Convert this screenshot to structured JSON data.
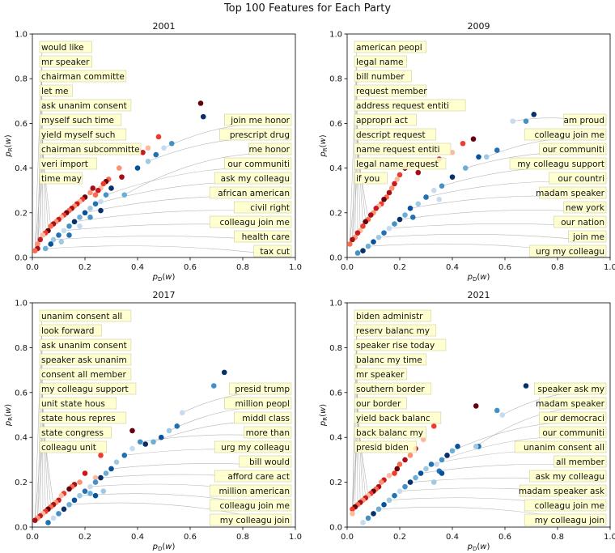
{
  "suptitle": "Top 100 Features for Each Party",
  "chart_data": [
    {
      "type": "scatter",
      "title": "2001",
      "xlabel": "p_D(w)",
      "ylabel": "p_R(w)",
      "xlim": [
        0,
        1.0
      ],
      "ylim": [
        0,
        1.0
      ],
      "xticks": [
        "0.0",
        "0.2",
        "0.4",
        "0.6",
        "0.8",
        "1.0"
      ],
      "yticks": [
        "0.0",
        "0.2",
        "0.4",
        "0.6",
        "0.8",
        "1.0"
      ],
      "republican_labels": [
        "would like",
        "mr speaker",
        "chairman committe",
        "let me",
        "ask unanim consent",
        "myself such time",
        "yield myself such",
        "chairman subcommitte",
        "veri import",
        "time may"
      ],
      "democrat_labels": [
        "join me honor",
        "prescript drug",
        "me honor",
        "our communiti",
        "ask my colleagu",
        "african american",
        "civil right",
        "colleagu join me",
        "health care",
        "tax cut"
      ],
      "republican_points": [
        [
          0.64,
          0.69
        ],
        [
          0.48,
          0.54
        ],
        [
          0.44,
          0.49
        ],
        [
          0.42,
          0.47
        ],
        [
          0.33,
          0.4
        ],
        [
          0.34,
          0.36
        ],
        [
          0.29,
          0.35
        ],
        [
          0.28,
          0.34
        ],
        [
          0.27,
          0.33
        ],
        [
          0.26,
          0.31
        ],
        [
          0.25,
          0.3
        ],
        [
          0.22,
          0.29
        ],
        [
          0.23,
          0.31
        ],
        [
          0.24,
          0.28
        ],
        [
          0.2,
          0.27
        ],
        [
          0.19,
          0.26
        ],
        [
          0.18,
          0.25
        ],
        [
          0.17,
          0.24
        ],
        [
          0.16,
          0.23
        ],
        [
          0.15,
          0.22
        ],
        [
          0.14,
          0.21
        ],
        [
          0.13,
          0.2
        ],
        [
          0.12,
          0.19
        ],
        [
          0.11,
          0.18
        ],
        [
          0.1,
          0.17
        ],
        [
          0.09,
          0.16
        ],
        [
          0.08,
          0.15
        ],
        [
          0.07,
          0.14
        ],
        [
          0.06,
          0.12
        ],
        [
          0.05,
          0.11
        ],
        [
          0.04,
          0.1
        ],
        [
          0.03,
          0.08
        ],
        [
          0.02,
          0.06
        ],
        [
          0.02,
          0.04
        ],
        [
          0.01,
          0.03
        ]
      ],
      "democrat_points": [
        [
          0.65,
          0.63
        ],
        [
          0.53,
          0.51
        ],
        [
          0.5,
          0.49
        ],
        [
          0.47,
          0.46
        ],
        [
          0.44,
          0.43
        ],
        [
          0.4,
          0.4
        ],
        [
          0.35,
          0.28
        ],
        [
          0.3,
          0.31
        ],
        [
          0.28,
          0.28
        ],
        [
          0.26,
          0.25
        ],
        [
          0.24,
          0.24
        ],
        [
          0.22,
          0.22
        ],
        [
          0.2,
          0.2
        ],
        [
          0.18,
          0.18
        ],
        [
          0.16,
          0.16
        ],
        [
          0.14,
          0.14
        ],
        [
          0.12,
          0.12
        ],
        [
          0.1,
          0.1
        ],
        [
          0.08,
          0.08
        ],
        [
          0.07,
          0.06
        ],
        [
          0.05,
          0.04
        ],
        [
          0.26,
          0.21
        ],
        [
          0.22,
          0.18
        ],
        [
          0.18,
          0.14
        ],
        [
          0.14,
          0.1
        ],
        [
          0.11,
          0.07
        ]
      ]
    },
    {
      "type": "scatter",
      "title": "2009",
      "xlabel": "p_D(w)",
      "ylabel": "p_R(w)",
      "xlim": [
        0,
        1.0
      ],
      "ylim": [
        0,
        1.0
      ],
      "xticks": [
        "0.0",
        "0.2",
        "0.4",
        "0.6",
        "0.8",
        "1.0"
      ],
      "yticks": [
        "0.0",
        "0.2",
        "0.4",
        "0.6",
        "0.8",
        "1.0"
      ],
      "republican_labels": [
        "american peopl",
        "legal name",
        "bill number",
        "request member",
        "address request entiti",
        "appropri act",
        "descript request",
        "name request entiti",
        "legal name request",
        "if you"
      ],
      "democrat_labels": [
        "am proud",
        "colleagu join me",
        "our communiti",
        "my colleagu support",
        "our countri",
        "madam speaker",
        "new york",
        "our nation",
        "join me",
        "urg my colleagu"
      ],
      "republican_points": [
        [
          0.48,
          0.53
        ],
        [
          0.44,
          0.51
        ],
        [
          0.4,
          0.47
        ],
        [
          0.35,
          0.44
        ],
        [
          0.3,
          0.42
        ],
        [
          0.27,
          0.38
        ],
        [
          0.24,
          0.41
        ],
        [
          0.22,
          0.4
        ],
        [
          0.2,
          0.37
        ],
        [
          0.19,
          0.35
        ],
        [
          0.18,
          0.33
        ],
        [
          0.17,
          0.31
        ],
        [
          0.16,
          0.29
        ],
        [
          0.15,
          0.27
        ],
        [
          0.14,
          0.26
        ],
        [
          0.13,
          0.24
        ],
        [
          0.12,
          0.23
        ],
        [
          0.11,
          0.22
        ],
        [
          0.1,
          0.2
        ],
        [
          0.09,
          0.19
        ],
        [
          0.08,
          0.17
        ],
        [
          0.07,
          0.16
        ],
        [
          0.06,
          0.14
        ],
        [
          0.05,
          0.12
        ],
        [
          0.04,
          0.11
        ],
        [
          0.03,
          0.09
        ],
        [
          0.02,
          0.08
        ],
        [
          0.01,
          0.06
        ]
      ],
      "democrat_points": [
        [
          0.71,
          0.64
        ],
        [
          0.68,
          0.61
        ],
        [
          0.63,
          0.61
        ],
        [
          0.57,
          0.48
        ],
        [
          0.53,
          0.45
        ],
        [
          0.5,
          0.45
        ],
        [
          0.45,
          0.4
        ],
        [
          0.4,
          0.36
        ],
        [
          0.36,
          0.32
        ],
        [
          0.33,
          0.3
        ],
        [
          0.3,
          0.27
        ],
        [
          0.27,
          0.24
        ],
        [
          0.24,
          0.22
        ],
        [
          0.22,
          0.19
        ],
        [
          0.2,
          0.17
        ],
        [
          0.18,
          0.15
        ],
        [
          0.16,
          0.13
        ],
        [
          0.14,
          0.11
        ],
        [
          0.12,
          0.09
        ],
        [
          0.1,
          0.07
        ],
        [
          0.08,
          0.05
        ],
        [
          0.06,
          0.03
        ],
        [
          0.04,
          0.02
        ],
        [
          0.35,
          0.26
        ],
        [
          0.25,
          0.18
        ]
      ]
    },
    {
      "type": "scatter",
      "title": "2017",
      "xlabel": "p_D(w)",
      "ylabel": "p_R(w)",
      "xlim": [
        0,
        1.0
      ],
      "ylim": [
        0,
        1.0
      ],
      "xticks": [
        "0.0",
        "0.2",
        "0.4",
        "0.6",
        "0.8",
        "1.0"
      ],
      "yticks": [
        "0.0",
        "0.2",
        "0.4",
        "0.6",
        "0.8",
        "1.0"
      ],
      "republican_labels": [
        "unanim consent all",
        "look forward",
        "ask unanim consent",
        "speaker ask unanim",
        "consent all member",
        "my colleagu support",
        "unit state hous",
        "state hous repres",
        "state congress",
        "colleagu unit"
      ],
      "democrat_labels": [
        "presid trump",
        "million peopl",
        "middl class",
        "more than",
        "urg my colleagu",
        "bill would",
        "afford care act",
        "million american",
        "colleagu join me",
        "my colleagu join"
      ],
      "republican_points": [
        [
          0.38,
          0.43
        ],
        [
          0.26,
          0.32
        ],
        [
          0.24,
          0.22
        ],
        [
          0.2,
          0.24
        ],
        [
          0.18,
          0.2
        ],
        [
          0.16,
          0.19
        ],
        [
          0.15,
          0.18
        ],
        [
          0.14,
          0.17
        ],
        [
          0.12,
          0.15
        ],
        [
          0.11,
          0.14
        ],
        [
          0.1,
          0.12
        ],
        [
          0.09,
          0.11
        ],
        [
          0.08,
          0.1
        ],
        [
          0.07,
          0.09
        ],
        [
          0.06,
          0.08
        ],
        [
          0.05,
          0.07
        ],
        [
          0.04,
          0.06
        ],
        [
          0.03,
          0.05
        ],
        [
          0.02,
          0.04
        ],
        [
          0.01,
          0.03
        ]
      ],
      "democrat_points": [
        [
          0.73,
          0.69
        ],
        [
          0.69,
          0.63
        ],
        [
          0.57,
          0.51
        ],
        [
          0.55,
          0.45
        ],
        [
          0.52,
          0.43
        ],
        [
          0.49,
          0.4
        ],
        [
          0.46,
          0.38
        ],
        [
          0.43,
          0.37
        ],
        [
          0.41,
          0.38
        ],
        [
          0.38,
          0.35
        ],
        [
          0.35,
          0.32
        ],
        [
          0.32,
          0.29
        ],
        [
          0.3,
          0.26
        ],
        [
          0.28,
          0.24
        ],
        [
          0.26,
          0.22
        ],
        [
          0.24,
          0.2
        ],
        [
          0.22,
          0.18
        ],
        [
          0.2,
          0.16
        ],
        [
          0.18,
          0.14
        ],
        [
          0.16,
          0.12
        ],
        [
          0.14,
          0.1
        ],
        [
          0.12,
          0.08
        ],
        [
          0.1,
          0.06
        ],
        [
          0.08,
          0.04
        ],
        [
          0.06,
          0.02
        ],
        [
          0.27,
          0.16
        ],
        [
          0.24,
          0.14
        ],
        [
          0.22,
          0.15
        ]
      ]
    },
    {
      "type": "scatter",
      "title": "2021",
      "xlabel": "p_D(w)",
      "ylabel": "p_R(w)",
      "xlim": [
        0,
        1.0
      ],
      "ylim": [
        0,
        1.0
      ],
      "xticks": [
        "0.0",
        "0.2",
        "0.4",
        "0.6",
        "0.8",
        "1.0"
      ],
      "yticks": [
        "0.0",
        "0.2",
        "0.4",
        "0.6",
        "0.8",
        "1.0"
      ],
      "republican_labels": [
        "biden administr",
        "reserv balanc my",
        "speaker rise today",
        "balanc my time",
        "mr speaker",
        "southern border",
        "our border",
        "yield back balanc",
        "back balanc my",
        "presid biden"
      ],
      "democrat_labels": [
        "speaker ask my",
        "madam speaker",
        "our democraci",
        "our communiti",
        "unanim consent all",
        "all member",
        "ask my colleagu",
        "madam speaker ask",
        "colleagu join me",
        "my colleagu join"
      ],
      "republican_points": [
        [
          0.49,
          0.54
        ],
        [
          0.33,
          0.45
        ],
        [
          0.29,
          0.39
        ],
        [
          0.26,
          0.35
        ],
        [
          0.24,
          0.32
        ],
        [
          0.22,
          0.3
        ],
        [
          0.2,
          0.28
        ],
        [
          0.19,
          0.26
        ],
        [
          0.18,
          0.24
        ],
        [
          0.16,
          0.23
        ],
        [
          0.14,
          0.21
        ],
        [
          0.13,
          0.2
        ],
        [
          0.12,
          0.18
        ],
        [
          0.11,
          0.17
        ],
        [
          0.1,
          0.16
        ],
        [
          0.09,
          0.15
        ],
        [
          0.08,
          0.14
        ],
        [
          0.07,
          0.13
        ],
        [
          0.06,
          0.12
        ],
        [
          0.05,
          0.11
        ],
        [
          0.04,
          0.1
        ],
        [
          0.03,
          0.09
        ],
        [
          0.02,
          0.08
        ],
        [
          0.02,
          0.06
        ]
      ],
      "democrat_points": [
        [
          0.68,
          0.63
        ],
        [
          0.57,
          0.52
        ],
        [
          0.59,
          0.5
        ],
        [
          0.5,
          0.36
        ],
        [
          0.49,
          0.36
        ],
        [
          0.42,
          0.36
        ],
        [
          0.4,
          0.34
        ],
        [
          0.38,
          0.32
        ],
        [
          0.36,
          0.3
        ],
        [
          0.34,
          0.28
        ],
        [
          0.32,
          0.28
        ],
        [
          0.3,
          0.26
        ],
        [
          0.28,
          0.24
        ],
        [
          0.26,
          0.22
        ],
        [
          0.24,
          0.2
        ],
        [
          0.22,
          0.18
        ],
        [
          0.2,
          0.16
        ],
        [
          0.18,
          0.14
        ],
        [
          0.16,
          0.12
        ],
        [
          0.14,
          0.1
        ],
        [
          0.12,
          0.08
        ],
        [
          0.1,
          0.06
        ],
        [
          0.08,
          0.04
        ],
        [
          0.06,
          0.02
        ],
        [
          0.35,
          0.25
        ],
        [
          0.33,
          0.2
        ],
        [
          0.36,
          0.24
        ]
      ]
    }
  ]
}
